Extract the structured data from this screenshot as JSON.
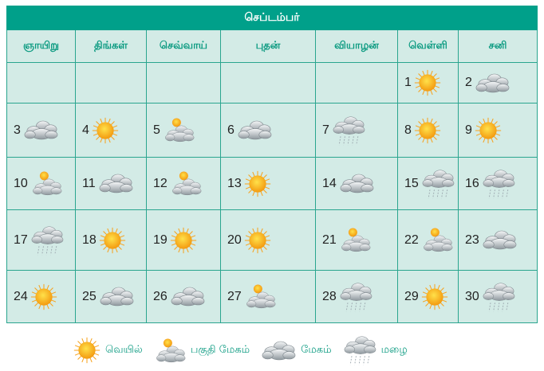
{
  "calendar": {
    "month": "செப்டம்பர்",
    "weekdays": [
      "ஞாயிறு",
      "திங்கள்",
      "செவ்வாய்",
      "புதன்",
      "வியாழன்",
      "வெள்ளி",
      "சனி"
    ],
    "weeks": [
      [
        null,
        null,
        null,
        null,
        null,
        {
          "day": "1",
          "weather": "sunny"
        },
        {
          "day": "2",
          "weather": "cloudy"
        }
      ],
      [
        {
          "day": "3",
          "weather": "cloudy"
        },
        {
          "day": "4",
          "weather": "sunny"
        },
        {
          "day": "5",
          "weather": "partly-cloudy"
        },
        {
          "day": "6",
          "weather": "cloudy"
        },
        {
          "day": "7",
          "weather": "rain"
        },
        {
          "day": "8",
          "weather": "sunny"
        },
        {
          "day": "9",
          "weather": "sunny"
        }
      ],
      [
        {
          "day": "10",
          "weather": "partly-cloudy"
        },
        {
          "day": "11",
          "weather": "cloudy"
        },
        {
          "day": "12",
          "weather": "partly-cloudy"
        },
        {
          "day": "13",
          "weather": "sunny"
        },
        {
          "day": "14",
          "weather": "cloudy"
        },
        {
          "day": "15",
          "weather": "rain"
        },
        {
          "day": "16",
          "weather": "rain"
        }
      ],
      [
        {
          "day": "17",
          "weather": "rain"
        },
        {
          "day": "18",
          "weather": "sunny"
        },
        {
          "day": "19",
          "weather": "sunny"
        },
        {
          "day": "20",
          "weather": "sunny"
        },
        {
          "day": "21",
          "weather": "partly-cloudy"
        },
        {
          "day": "22",
          "weather": "partly-cloudy"
        },
        {
          "day": "23",
          "weather": "cloudy"
        }
      ],
      [
        {
          "day": "24",
          "weather": "sunny"
        },
        {
          "day": "25",
          "weather": "cloudy"
        },
        {
          "day": "26",
          "weather": "cloudy"
        },
        {
          "day": "27",
          "weather": "partly-cloudy"
        },
        {
          "day": "28",
          "weather": "rain"
        },
        {
          "day": "29",
          "weather": "sunny"
        },
        {
          "day": "30",
          "weather": "rain"
        }
      ]
    ]
  },
  "legend": [
    {
      "weather": "sunny",
      "label": "வெயில்"
    },
    {
      "weather": "partly-cloudy",
      "label": "பகுதி மேகம்"
    },
    {
      "weather": "cloudy",
      "label": "மேகம்"
    },
    {
      "weather": "rain",
      "label": "மழை"
    }
  ],
  "colors": {
    "header": "#00a08a",
    "cell": "#d3ebe6",
    "border": "#2aa58f",
    "text": "#0a9a80"
  }
}
